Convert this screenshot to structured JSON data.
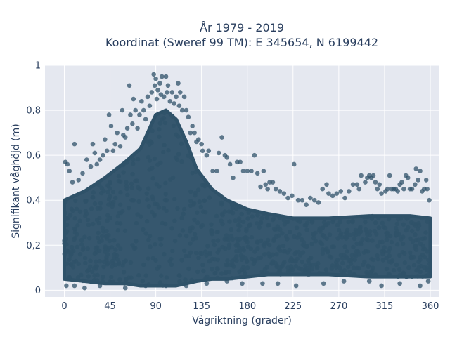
{
  "chart_data": {
    "type": "scatter",
    "title": "År 1979 - 2019",
    "subtitle": "Koordinat (Sweref 99 TM): E 345654, N 6199442",
    "xlabel": "Vågriktning (grader)",
    "ylabel": "Signifikant våghöjd (m)",
    "xlim": [
      -19,
      369
    ],
    "ylim": [
      -0.03,
      1.0
    ],
    "xticks": [
      0,
      45,
      90,
      135,
      180,
      225,
      270,
      315,
      360
    ],
    "xtick_labels": [
      "0",
      "45",
      "90",
      "135",
      "180",
      "225",
      "270",
      "315",
      "360"
    ],
    "yticks": [
      0,
      0.2,
      0.4,
      0.6,
      0.8,
      1.0
    ],
    "ytick_labels": [
      "0",
      "0,2",
      "0,4",
      "0,6",
      "0,8",
      "1"
    ],
    "grid": true,
    "marker_color": "#2f5269",
    "background_color": "#e5e8f0",
    "series": [
      {
        "points": [
          [
            1,
            0.57
          ],
          [
            3,
            0.56
          ],
          [
            5,
            0.53
          ],
          [
            8,
            0.48
          ],
          [
            10,
            0.65
          ],
          [
            14,
            0.49
          ],
          [
            18,
            0.52
          ],
          [
            22,
            0.58
          ],
          [
            26,
            0.55
          ],
          [
            28,
            0.65
          ],
          [
            30,
            0.61
          ],
          [
            32,
            0.56
          ],
          [
            35,
            0.58
          ],
          [
            38,
            0.6
          ],
          [
            40,
            0.67
          ],
          [
            42,
            0.62
          ],
          [
            44,
            0.78
          ],
          [
            46,
            0.73
          ],
          [
            48,
            0.62
          ],
          [
            50,
            0.65
          ],
          [
            52,
            0.7
          ],
          [
            55,
            0.64
          ],
          [
            57,
            0.8
          ],
          [
            58,
            0.69
          ],
          [
            60,
            0.68
          ],
          [
            62,
            0.72
          ],
          [
            64,
            0.91
          ],
          [
            65,
            0.78
          ],
          [
            67,
            0.74
          ],
          [
            68,
            0.85
          ],
          [
            70,
            0.8
          ],
          [
            72,
            0.72
          ],
          [
            74,
            0.78
          ],
          [
            76,
            0.84
          ],
          [
            78,
            0.8
          ],
          [
            80,
            0.76
          ],
          [
            82,
            0.86
          ],
          [
            84,
            0.82
          ],
          [
            86,
            0.88
          ],
          [
            88,
            0.96
          ],
          [
            89,
            0.91
          ],
          [
            90,
            0.94
          ],
          [
            91,
            0.85
          ],
          [
            92,
            0.89
          ],
          [
            94,
            0.92
          ],
          [
            95,
            0.87
          ],
          [
            96,
            0.95
          ],
          [
            98,
            0.86
          ],
          [
            100,
            0.95
          ],
          [
            101,
            0.88
          ],
          [
            102,
            0.91
          ],
          [
            104,
            0.84
          ],
          [
            106,
            0.88
          ],
          [
            108,
            0.83
          ],
          [
            110,
            0.86
          ],
          [
            112,
            0.92
          ],
          [
            113,
            0.82
          ],
          [
            114,
            0.88
          ],
          [
            116,
            0.8
          ],
          [
            118,
            0.86
          ],
          [
            120,
            0.8
          ],
          [
            122,
            0.77
          ],
          [
            124,
            0.7
          ],
          [
            126,
            0.73
          ],
          [
            128,
            0.7
          ],
          [
            130,
            0.66
          ],
          [
            132,
            0.67
          ],
          [
            135,
            0.65
          ],
          [
            136,
            0.62
          ],
          [
            140,
            0.6
          ],
          [
            142,
            0.62
          ],
          [
            146,
            0.53
          ],
          [
            150,
            0.53
          ],
          [
            152,
            0.61
          ],
          [
            155,
            0.68
          ],
          [
            158,
            0.6
          ],
          [
            160,
            0.59
          ],
          [
            163,
            0.56
          ],
          [
            166,
            0.5
          ],
          [
            170,
            0.57
          ],
          [
            173,
            0.57
          ],
          [
            176,
            0.53
          ],
          [
            180,
            0.53
          ],
          [
            184,
            0.53
          ],
          [
            187,
            0.6
          ],
          [
            190,
            0.52
          ],
          [
            193,
            0.46
          ],
          [
            196,
            0.53
          ],
          [
            198,
            0.47
          ],
          [
            200,
            0.45
          ],
          [
            202,
            0.48
          ],
          [
            205,
            0.48
          ],
          [
            208,
            0.45
          ],
          [
            212,
            0.44
          ],
          [
            216,
            0.43
          ],
          [
            220,
            0.41
          ],
          [
            224,
            0.42
          ],
          [
            226,
            0.56
          ],
          [
            230,
            0.4
          ],
          [
            234,
            0.4
          ],
          [
            238,
            0.38
          ],
          [
            242,
            0.41
          ],
          [
            246,
            0.4
          ],
          [
            250,
            0.39
          ],
          [
            254,
            0.45
          ],
          [
            258,
            0.47
          ],
          [
            260,
            0.43
          ],
          [
            264,
            0.42
          ],
          [
            268,
            0.43
          ],
          [
            272,
            0.44
          ],
          [
            276,
            0.41
          ],
          [
            280,
            0.44
          ],
          [
            284,
            0.47
          ],
          [
            288,
            0.47
          ],
          [
            290,
            0.45
          ],
          [
            292,
            0.51
          ],
          [
            296,
            0.48
          ],
          [
            298,
            0.5
          ],
          [
            300,
            0.51
          ],
          [
            302,
            0.5
          ],
          [
            304,
            0.51
          ],
          [
            306,
            0.48
          ],
          [
            308,
            0.45
          ],
          [
            310,
            0.47
          ],
          [
            312,
            0.43
          ],
          [
            316,
            0.44
          ],
          [
            318,
            0.45
          ],
          [
            320,
            0.51
          ],
          [
            322,
            0.45
          ],
          [
            324,
            0.45
          ],
          [
            326,
            0.45
          ],
          [
            328,
            0.44
          ],
          [
            330,
            0.47
          ],
          [
            332,
            0.48
          ],
          [
            334,
            0.45
          ],
          [
            336,
            0.51
          ],
          [
            338,
            0.5
          ],
          [
            340,
            0.45
          ],
          [
            342,
            0.45
          ],
          [
            345,
            0.47
          ],
          [
            346,
            0.54
          ],
          [
            348,
            0.49
          ],
          [
            350,
            0.53
          ],
          [
            352,
            0.44
          ],
          [
            354,
            0.45
          ],
          [
            356,
            0.49
          ],
          [
            357,
            0.45
          ],
          [
            359,
            0.4
          ],
          [
            2,
            0.02
          ],
          [
            10,
            0.02
          ],
          [
            20,
            0.01
          ],
          [
            35,
            0.02
          ],
          [
            60,
            0.01
          ],
          [
            80,
            0.02
          ],
          [
            100,
            0.02
          ],
          [
            120,
            0.02
          ],
          [
            140,
            0.03
          ],
          [
            160,
            0.04
          ],
          [
            175,
            0.03
          ],
          [
            195,
            0.03
          ],
          [
            210,
            0.03
          ],
          [
            228,
            0.02
          ],
          [
            255,
            0.03
          ],
          [
            275,
            0.04
          ],
          [
            300,
            0.04
          ],
          [
            312,
            0.02
          ],
          [
            330,
            0.03
          ],
          [
            350,
            0.02
          ],
          [
            358,
            0.04
          ]
        ]
      }
    ],
    "density_envelope": {
      "description_of_band": "dense cloud of observations",
      "x": [
        0,
        20,
        40,
        60,
        75,
        90,
        100,
        110,
        120,
        130,
        145,
        160,
        180,
        200,
        225,
        260,
        300,
        340,
        360
      ],
      "upper": [
        0.4,
        0.44,
        0.5,
        0.57,
        0.63,
        0.78,
        0.8,
        0.76,
        0.66,
        0.54,
        0.45,
        0.4,
        0.36,
        0.34,
        0.32,
        0.32,
        0.33,
        0.33,
        0.32
      ],
      "lower": [
        0.05,
        0.04,
        0.03,
        0.03,
        0.02,
        0.02,
        0.02,
        0.02,
        0.03,
        0.04,
        0.05,
        0.05,
        0.06,
        0.07,
        0.07,
        0.07,
        0.06,
        0.06,
        0.06
      ]
    }
  }
}
